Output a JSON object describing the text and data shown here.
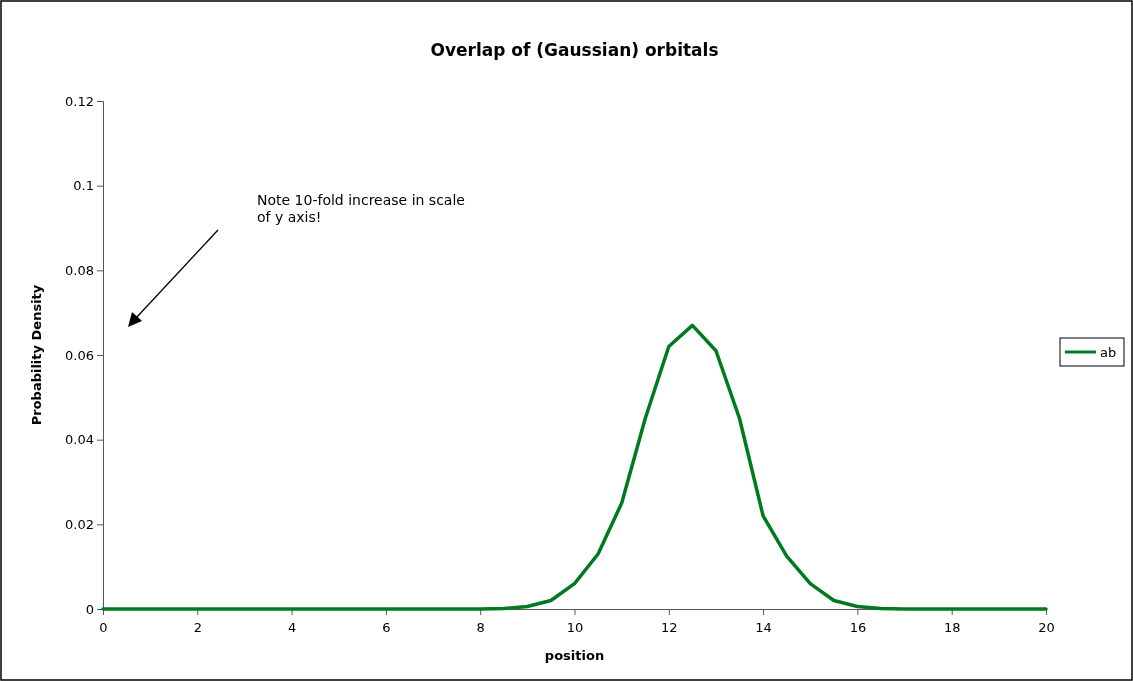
{
  "chart_data": {
    "type": "line",
    "title": "Overlap of (Gaussian) orbitals",
    "xlabel": "position",
    "ylabel": "Probability Density",
    "x": [
      0,
      1,
      2,
      3,
      4,
      5,
      6,
      7,
      8,
      8.5,
      9,
      9.5,
      10,
      10.5,
      11,
      11.5,
      12,
      12.5,
      13,
      13.5,
      14,
      14.5,
      15,
      15.5,
      16,
      16.5,
      17,
      18,
      19,
      20
    ],
    "series": [
      {
        "name": "ab",
        "color": "#007a1e",
        "values": [
          0,
          0,
          0,
          0,
          0,
          0,
          0,
          0,
          0,
          0.0001,
          0.0006,
          0.002,
          0.006,
          0.013,
          0.025,
          0.045,
          0.062,
          0.067,
          0.061,
          0.045,
          0.022,
          0.0125,
          0.006,
          0.002,
          0.0006,
          0.0001,
          0,
          0,
          0,
          0
        ]
      }
    ],
    "xlim": [
      0,
      20
    ],
    "xticks": [
      0,
      2,
      4,
      6,
      8,
      10,
      12,
      14,
      16,
      18,
      20
    ],
    "ylim": [
      0,
      0.12
    ],
    "yticks": [
      0,
      0.02,
      0.04,
      0.06,
      0.08,
      0.1,
      0.12
    ],
    "grid": false,
    "legend": "right",
    "marker": "none",
    "line_style": "solid",
    "annotations": [
      "Note 10-fold increase in scale of y axis!"
    ]
  }
}
